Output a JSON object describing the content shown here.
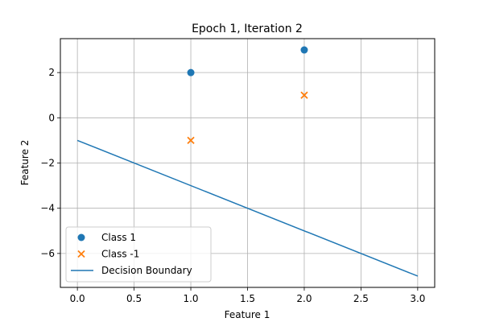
{
  "chart_data": {
    "type": "scatter",
    "title": "Epoch 1, Iteration 2",
    "xlabel": "Feature 1",
    "ylabel": "Feature 2",
    "xlim": [
      -0.15,
      3.15
    ],
    "ylim": [
      -7.5,
      3.5
    ],
    "xticks": [
      0.0,
      0.5,
      1.0,
      1.5,
      2.0,
      2.5,
      3.0
    ],
    "xtick_labels": [
      "0.0",
      "0.5",
      "1.0",
      "1.5",
      "2.0",
      "2.5",
      "3.0"
    ],
    "yticks": [
      -6,
      -4,
      -2,
      0,
      2
    ],
    "ytick_labels": [
      "−6",
      "−4",
      "−2",
      "0",
      "2"
    ],
    "grid": true,
    "legend_position": "lower-left",
    "series": [
      {
        "name": "Class 1",
        "kind": "scatter",
        "marker": "circle",
        "color": "#1f77b4",
        "points": [
          {
            "x": 1,
            "y": 2
          },
          {
            "x": 2,
            "y": 3
          }
        ]
      },
      {
        "name": "Class -1",
        "kind": "scatter",
        "marker": "x",
        "color": "#ff7f0e",
        "points": [
          {
            "x": 1,
            "y": -1
          },
          {
            "x": 2,
            "y": 1
          }
        ]
      },
      {
        "name": "Decision Boundary",
        "kind": "line",
        "color": "#1f77b4",
        "points": [
          {
            "x": 0,
            "y": -1
          },
          {
            "x": 3,
            "y": -7
          }
        ]
      }
    ]
  }
}
